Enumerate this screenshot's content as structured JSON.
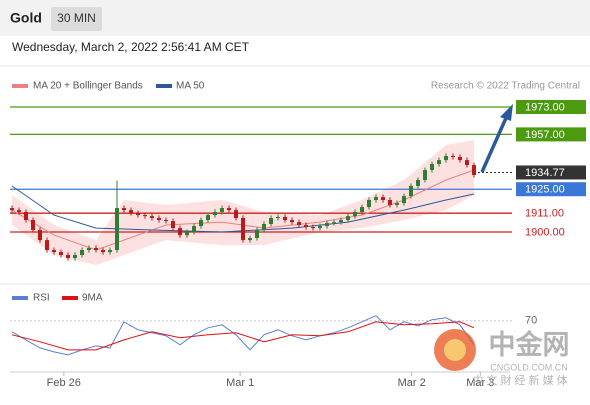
{
  "header": {
    "title": "Gold",
    "interval": "30 MIN"
  },
  "timestamp": "Wednesday, March 2, 2022 2:56:41 AM CET",
  "chart_data": [
    {
      "type": "candlestick",
      "credit": "Research © 2022 Trading Central",
      "xlim": [
        0,
        71
      ],
      "ylim": [
        1872,
        1980
      ],
      "up_color": "#2f7d32",
      "down_color": "#b71c1c",
      "candles": {
        "open": [
          1914.0,
          1912.8,
          1911.7,
          1907.0,
          1901.2,
          1895.3,
          1889.5,
          1888.3,
          1886.6,
          1884.8,
          1886.6,
          1889.5,
          1890.7,
          1889.5,
          1888.3,
          1889.5,
          1914.0,
          1912.8,
          1911.1,
          1909.9,
          1909.3,
          1908.2,
          1907.0,
          1906.4,
          1902.3,
          1898.2,
          1900.0,
          1903.5,
          1907.0,
          1909.9,
          1911.7,
          1914.0,
          1912.8,
          1908.2,
          1895.3,
          1896.5,
          1901.2,
          1904.7,
          1908.2,
          1908.8,
          1907.0,
          1905.8,
          1904.1,
          1902.9,
          1902.3,
          1903.5,
          1905.3,
          1905.8,
          1907.0,
          1909.3,
          1911.7,
          1914.6,
          1918.7,
          1920.4,
          1918.7,
          1915.8,
          1916.9,
          1921.0,
          1926.9,
          1930.4,
          1936.2,
          1939.7,
          1942.0,
          1944.4,
          1943.8,
          1942.0,
          1939.1
        ],
        "high": [
          1915.5,
          1914.3,
          1913.2,
          1908.5,
          1902.7,
          1896.8,
          1891.0,
          1889.8,
          1888.1,
          1888.1,
          1891.0,
          1892.2,
          1892.2,
          1891.0,
          1891.0,
          1930.0,
          1915.5,
          1914.3,
          1912.6,
          1911.4,
          1910.8,
          1909.7,
          1908.5,
          1907.9,
          1903.8,
          1901.5,
          1905.0,
          1908.5,
          1911.4,
          1913.2,
          1915.5,
          1915.5,
          1914.3,
          1909.7,
          1898.0,
          1902.7,
          1906.2,
          1909.7,
          1910.3,
          1910.3,
          1908.5,
          1907.3,
          1905.6,
          1904.4,
          1905.0,
          1906.8,
          1907.3,
          1908.5,
          1910.8,
          1913.2,
          1916.1,
          1920.2,
          1921.9,
          1921.9,
          1920.2,
          1918.4,
          1922.5,
          1928.4,
          1931.9,
          1937.7,
          1941.2,
          1943.5,
          1945.9,
          1945.9,
          1945.3,
          1943.5,
          1940.6
        ],
        "low": [
          1911.3,
          1910.2,
          1905.5,
          1899.7,
          1893.8,
          1888.0,
          1886.8,
          1885.1,
          1883.3,
          1883.3,
          1885.1,
          1888.0,
          1888.0,
          1886.8,
          1886.8,
          1888.0,
          1911.3,
          1909.6,
          1908.4,
          1907.8,
          1906.7,
          1905.5,
          1904.9,
          1900.8,
          1896.7,
          1896.7,
          1898.5,
          1902.0,
          1905.5,
          1908.4,
          1910.2,
          1911.3,
          1906.7,
          1893.8,
          1893.8,
          1895.0,
          1899.7,
          1903.2,
          1906.7,
          1905.5,
          1904.3,
          1902.6,
          1901.4,
          1900.8,
          1900.8,
          1902.0,
          1903.8,
          1904.3,
          1905.5,
          1907.8,
          1910.2,
          1913.1,
          1917.2,
          1917.2,
          1914.3,
          1914.3,
          1915.4,
          1919.5,
          1925.4,
          1928.9,
          1934.7,
          1938.2,
          1940.5,
          1942.3,
          1940.5,
          1937.6,
          1931.8
        ],
        "close": [
          1912.8,
          1911.7,
          1907.0,
          1901.2,
          1895.3,
          1889.5,
          1888.3,
          1886.6,
          1884.8,
          1886.6,
          1889.5,
          1890.7,
          1889.5,
          1888.3,
          1889.5,
          1914.0,
          1912.8,
          1911.1,
          1909.9,
          1909.3,
          1908.2,
          1907.0,
          1906.4,
          1902.3,
          1898.2,
          1900.0,
          1903.5,
          1907.0,
          1909.9,
          1911.7,
          1914.0,
          1912.8,
          1908.2,
          1895.3,
          1896.5,
          1901.2,
          1904.7,
          1908.2,
          1908.8,
          1907.0,
          1905.8,
          1904.1,
          1902.9,
          1902.3,
          1903.5,
          1905.3,
          1905.8,
          1907.0,
          1909.3,
          1911.7,
          1914.6,
          1918.7,
          1920.4,
          1918.7,
          1915.8,
          1916.9,
          1921.0,
          1926.9,
          1930.4,
          1936.2,
          1939.7,
          1942.0,
          1944.4,
          1943.8,
          1942.0,
          1939.1,
          1933.3
        ]
      },
      "overlays": [
        {
          "name": "MA 20 + Bollinger Bands",
          "color": "#f08080",
          "band_color": "#fde0e0",
          "x": [
            0,
            6,
            12,
            16,
            22,
            30,
            36,
            44,
            50,
            56,
            62,
            66
          ],
          "values": [
            1912.8,
            1898.2,
            1889.5,
            1895.3,
            1904.1,
            1905.8,
            1902.3,
            1905.8,
            1909.9,
            1918.7,
            1930.4,
            1936.2
          ],
          "upper": [
            1921.6,
            1904.1,
            1895.3,
            1918.7,
            1915.8,
            1918.7,
            1911.7,
            1909.9,
            1918.7,
            1930.4,
            1950.8,
            1953.7
          ],
          "lower": [
            1904.1,
            1886.6,
            1880.7,
            1886.6,
            1895.3,
            1892.4,
            1892.4,
            1900.0,
            1902.3,
            1907.0,
            1912.8,
            1921.6
          ]
        },
        {
          "name": "MA 50",
          "color": "#2a5a9a",
          "x": [
            0,
            6,
            12,
            20,
            30,
            40,
            48,
            56,
            62,
            66
          ],
          "values": [
            1926.9,
            1909.9,
            1902.3,
            1901.2,
            1900.0,
            1902.3,
            1905.8,
            1912.8,
            1918.7,
            1922.2
          ]
        }
      ],
      "levels": [
        {
          "value": 1973,
          "label": "1973.00",
          "color": "#4c9a10",
          "boxed": true,
          "dashed": false
        },
        {
          "value": 1957,
          "label": "1957.00",
          "color": "#4c9a10",
          "boxed": true,
          "dashed": false
        },
        {
          "value": 1934.77,
          "label": "1934.77",
          "color": "#333333",
          "boxed": true,
          "dashed": true
        },
        {
          "value": 1925,
          "label": "1925.00",
          "color": "#3a78d8",
          "boxed": true,
          "dashed": false
        },
        {
          "value": 1911,
          "label": "1911.00",
          "color": "#cc2222",
          "boxed": false,
          "dashed": false
        },
        {
          "value": 1900,
          "label": "1900.00",
          "color": "#cc2222",
          "boxed": false,
          "dashed": false
        }
      ]
    },
    {
      "type": "line",
      "xlim": [
        0,
        71
      ],
      "ylim": [
        10,
        106
      ],
      "yticks": [
        70
      ],
      "xticks": [
        {
          "value": 7.4,
          "label": "Feb 26"
        },
        {
          "value": 32.6,
          "label": "Mar 1"
        },
        {
          "value": 57.1,
          "label": "Mar 2"
        },
        {
          "value": 66.9,
          "label": "Mar 3"
        }
      ],
      "series": [
        {
          "name": "RSI",
          "color": "#5b7fd6",
          "x": [
            0,
            2,
            4,
            6,
            8,
            10,
            12,
            14,
            16,
            18,
            20,
            22,
            24,
            26,
            28,
            30,
            32,
            34,
            36,
            38,
            40,
            42,
            44,
            46,
            48,
            50,
            52,
            54,
            56,
            58,
            60,
            62,
            64,
            66
          ],
          "values": [
            57.1,
            47.6,
            38.2,
            33.5,
            30.0,
            35.9,
            40.6,
            38.2,
            68.8,
            59.4,
            55.9,
            52.4,
            41.8,
            53.5,
            61.8,
            65.3,
            53.5,
            35.9,
            53.5,
            59.4,
            52.4,
            47.6,
            52.4,
            55.9,
            61.8,
            68.8,
            75.9,
            59.4,
            68.8,
            64.1,
            71.2,
            73.5,
            65.3,
            41.8
          ]
        },
        {
          "name": "9MA",
          "color": "#dd1111",
          "x": [
            0,
            4,
            8,
            12,
            16,
            20,
            24,
            28,
            32,
            36,
            40,
            44,
            48,
            52,
            56,
            60,
            64,
            66
          ],
          "values": [
            53.5,
            45.3,
            35.9,
            35.9,
            47.6,
            57.1,
            50.0,
            53.5,
            55.9,
            45.3,
            53.5,
            52.4,
            57.1,
            68.8,
            65.3,
            66.5,
            68.8,
            61.8
          ]
        }
      ]
    }
  ],
  "watermark": {
    "brand": "中金网",
    "site": "CNGOLD.COM.CN",
    "slogan": "中 文 財 经 新 媒 体"
  }
}
